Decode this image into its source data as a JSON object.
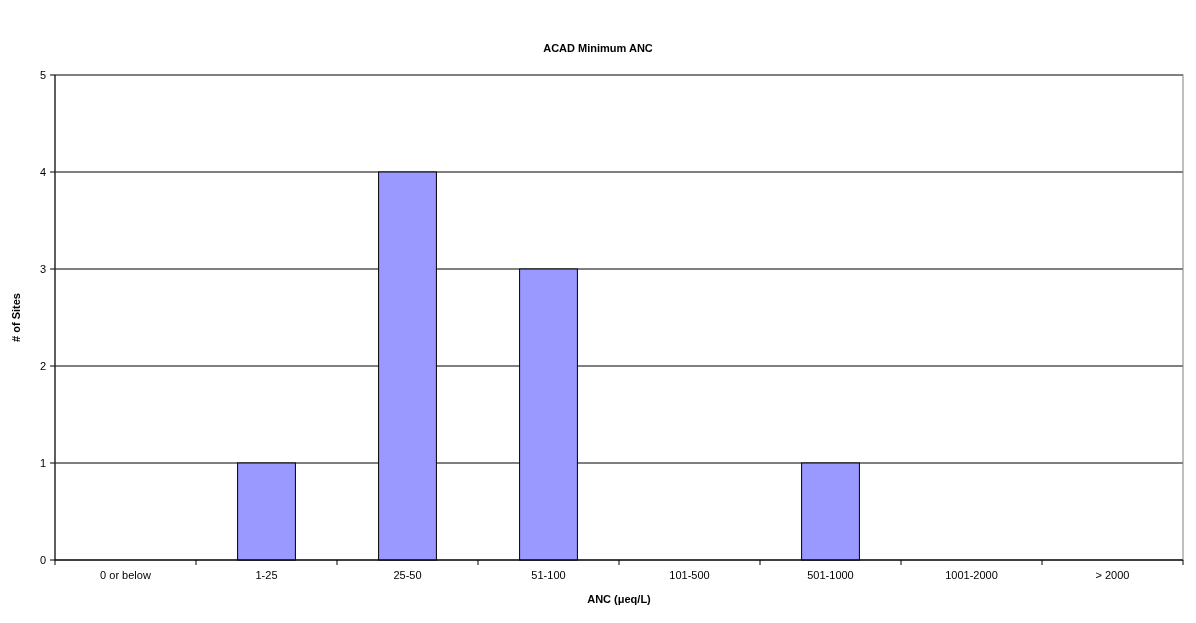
{
  "chart_data": {
    "type": "bar",
    "title": "ACAD Minimum ANC",
    "xlabel": "ANC (μeq/L)",
    "ylabel": "# of Sites",
    "categories": [
      "0 or below",
      "1-25",
      "25-50",
      "51-100",
      "101-500",
      "501-1000",
      "1001-2000",
      "> 2000"
    ],
    "values": [
      0,
      1,
      4,
      3,
      0,
      1,
      0,
      0
    ],
    "color": "#9999ff",
    "ylim": [
      0,
      5
    ],
    "yticks": [
      0,
      1,
      2,
      3,
      4,
      5
    ],
    "grid": "y"
  }
}
